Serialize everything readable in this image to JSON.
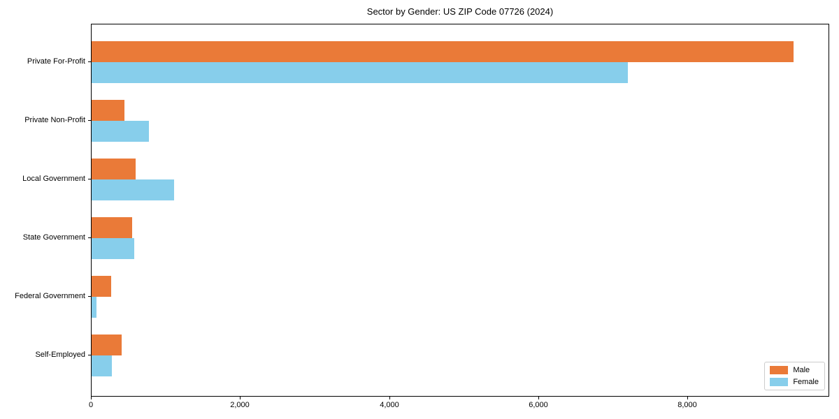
{
  "chart_data": {
    "type": "bar",
    "orientation": "horizontal",
    "title": "Sector by Gender: US ZIP Code 07726 (2024)",
    "categories": [
      "Private For-Profit",
      "Private Non-Profit",
      "Local Government",
      "State Government",
      "Federal Government",
      "Self-Employed"
    ],
    "series": [
      {
        "name": "Male",
        "color": "#EA7A38",
        "values": [
          9410,
          440,
          590,
          540,
          265,
          400
        ]
      },
      {
        "name": "Female",
        "color": "#87CEEB",
        "values": [
          7190,
          765,
          1110,
          570,
          70,
          270
        ]
      }
    ],
    "xlim": [
      0,
      9880
    ],
    "xticks": [
      0,
      2000,
      4000,
      6000,
      8000
    ],
    "xtick_labels": [
      "0",
      "2,000",
      "4,000",
      "6,000",
      "8,000"
    ],
    "xlabel": "",
    "ylabel": "",
    "grid": false,
    "legend_position": "lower right",
    "frame_color": "#000000",
    "background_color": "#ffffff"
  }
}
